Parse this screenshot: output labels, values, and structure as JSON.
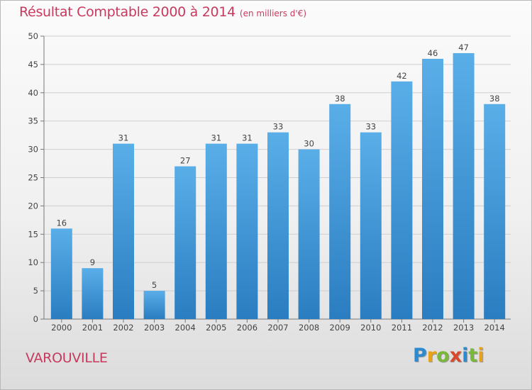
{
  "title": "Résultat Comptable 2000 à 2014",
  "subtitle": "(en milliers d'€)",
  "place": "VAROUVILLE",
  "logo": {
    "text": "Proxiti"
  },
  "colors": {
    "bar_top": "#5aaee8",
    "bar_bottom": "#2a7dc0",
    "title": "#c73a5e",
    "grid": "#cfcfcf"
  },
  "chart_data": {
    "type": "bar",
    "title": "Résultat Comptable 2000 à 2014",
    "subtitle": "(en milliers d'€)",
    "xlabel": "",
    "ylabel": "",
    "categories": [
      "2000",
      "2001",
      "2002",
      "2003",
      "2004",
      "2005",
      "2006",
      "2007",
      "2008",
      "2009",
      "2010",
      "2011",
      "2012",
      "2013",
      "2014"
    ],
    "values": [
      16,
      9,
      31,
      5,
      27,
      31,
      31,
      33,
      30,
      38,
      33,
      42,
      46,
      47,
      38
    ],
    "ylim": [
      0,
      50
    ],
    "yticks": [
      0,
      5,
      10,
      15,
      20,
      25,
      30,
      35,
      40,
      45,
      50
    ],
    "grid": true,
    "legend": "none"
  }
}
